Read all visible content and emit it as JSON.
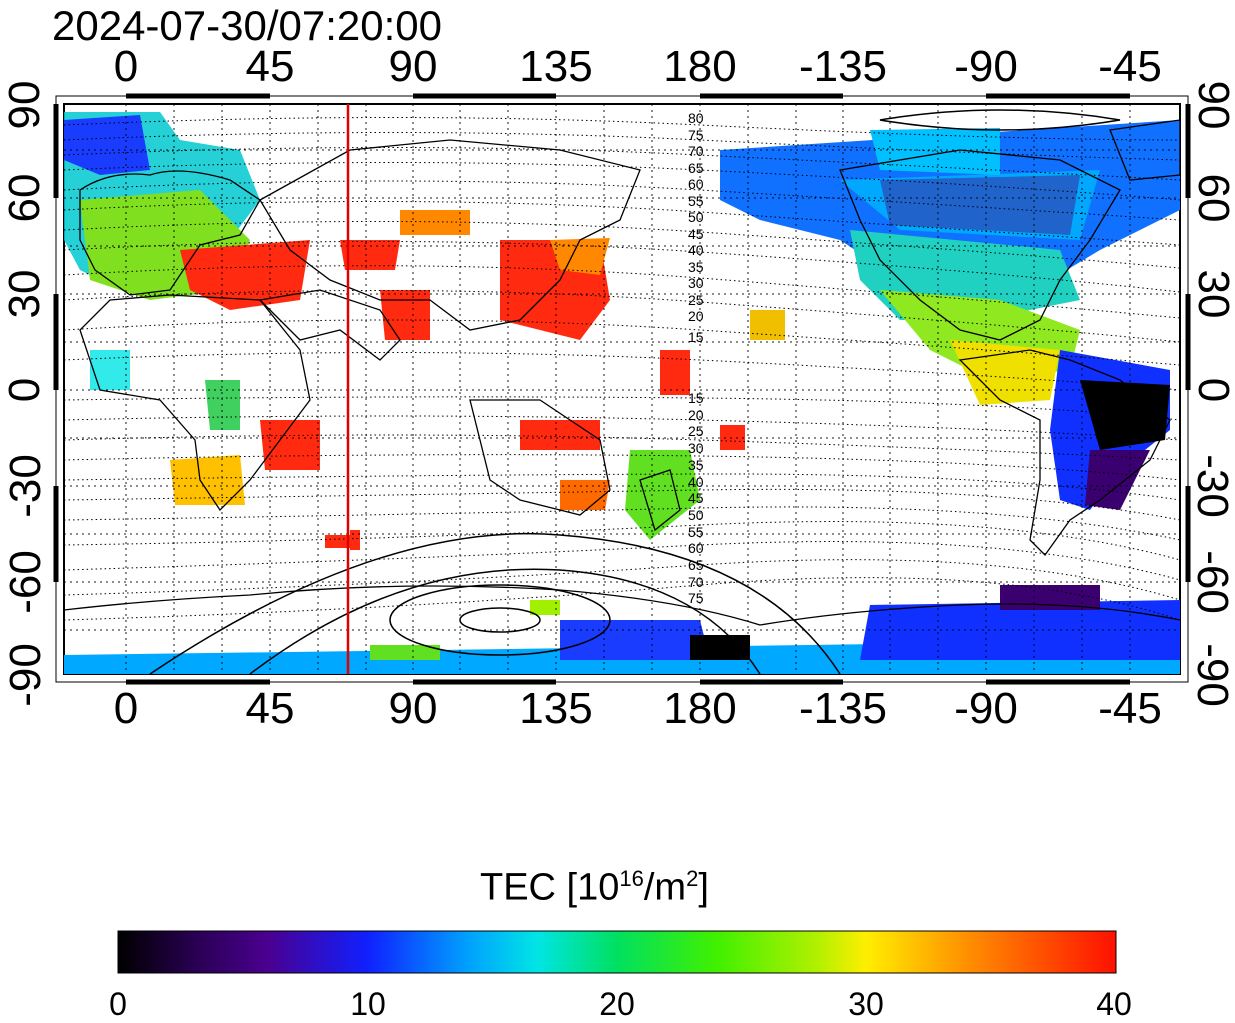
{
  "timestamp": "2024-07-30/07:20:00",
  "lon_tick_labels": [
    "0",
    "45",
    "90",
    "135",
    "180",
    "-135",
    "-90",
    "-45"
  ],
  "lat_tick_labels": [
    "90",
    "60",
    "30",
    "0",
    "-30",
    "-60",
    "-90"
  ],
  "contour_labels_north": [
    "80",
    "75",
    "70",
    "65",
    "60",
    "55",
    "50",
    "45",
    "40",
    "35",
    "30",
    "25",
    "20",
    "15"
  ],
  "contour_labels_south": [
    "15",
    "20",
    "25",
    "30",
    "35",
    "40",
    "45",
    "50",
    "55",
    "60",
    "65",
    "70",
    "75"
  ],
  "colorbar": {
    "title_main": "TEC  [10",
    "title_exp1": "16",
    "title_mid": "/m",
    "title_exp2": "2",
    "title_end": "]",
    "min": 0,
    "max": 40,
    "tick_labels": [
      "0",
      "10",
      "20",
      "30",
      "40"
    ]
  },
  "colors": {
    "terminator_line": "#e00000",
    "palette": [
      "#000000",
      "#3b0070",
      "#1a1aff",
      "#00a0ff",
      "#00e5e5",
      "#00dd30",
      "#a0f000",
      "#ffee00",
      "#ff8800",
      "#ff1a00"
    ]
  }
}
